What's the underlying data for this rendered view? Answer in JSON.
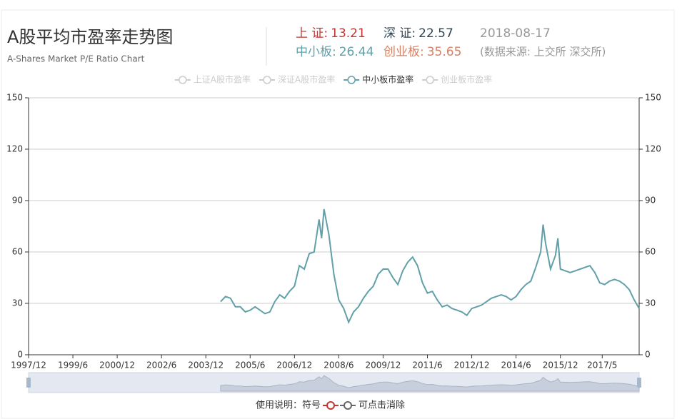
{
  "header": {
    "title": "A股平均市盈率走势图",
    "subtitle": "A-Shares Market P/E Ratio Chart",
    "stats": [
      {
        "label": "上 证:",
        "value": 13.21,
        "color": "#c23531"
      },
      {
        "label": "深 证:",
        "value": 22.57,
        "color": "#2f4554"
      },
      {
        "label": "中小板:",
        "value": 26.44,
        "color": "#61a0a8"
      },
      {
        "label": "创业板:",
        "value": 35.65,
        "color": "#d48265"
      }
    ],
    "date": "2018-08-17",
    "source": "(数据来源: 上交所 深交所)"
  },
  "chart_data": {
    "type": "line",
    "x": [
      "2004/6",
      "2004/8",
      "2004/10",
      "2004/12",
      "2005/2",
      "2005/4",
      "2005/6",
      "2005/8",
      "2005/10",
      "2005/12",
      "2006/2",
      "2006/4",
      "2006/6",
      "2006/8",
      "2006/10",
      "2006/12",
      "2007/2",
      "2007/4",
      "2007/6",
      "2007/8",
      "2007/10",
      "2007/11",
      "2007/12",
      "2008/2",
      "2008/4",
      "2008/6",
      "2008/8",
      "2008/10",
      "2008/12",
      "2009/2",
      "2009/4",
      "2009/6",
      "2009/8",
      "2009/10",
      "2009/12",
      "2010/2",
      "2010/4",
      "2010/6",
      "2010/8",
      "2010/10",
      "2010/12",
      "2011/2",
      "2011/4",
      "2011/6",
      "2011/8",
      "2011/10",
      "2011/12",
      "2012/2",
      "2012/4",
      "2012/6",
      "2012/8",
      "2012/10",
      "2012/12",
      "2013/2",
      "2013/4",
      "2013/6",
      "2013/8",
      "2013/10",
      "2013/12",
      "2014/2",
      "2014/4",
      "2014/6",
      "2014/8",
      "2014/10",
      "2014/12",
      "2015/2",
      "2015/4",
      "2015/5",
      "2015/6",
      "2015/8",
      "2015/10",
      "2015/11",
      "2015/12",
      "2016/2",
      "2016/4",
      "2016/6",
      "2016/8",
      "2016/10",
      "2016/12",
      "2017/2",
      "2017/4",
      "2017/6",
      "2017/8",
      "2017/10",
      "2017/12",
      "2018/2",
      "2018/4",
      "2018/6",
      "2018/8"
    ],
    "series": [
      {
        "name": "上证A股市盈率",
        "selected": false
      },
      {
        "name": "深证A股市盈率",
        "selected": false
      },
      {
        "name": "中小板市盈率",
        "selected": true,
        "color": "#61a0a8",
        "values": [
          31,
          34,
          33,
          28,
          28,
          25,
          26,
          28,
          26,
          24,
          25,
          31,
          35,
          33,
          37,
          40,
          52,
          50,
          59,
          60,
          79,
          68,
          85,
          70,
          47,
          32,
          27,
          19,
          25,
          28,
          33,
          37,
          40,
          47,
          50,
          50,
          45,
          41,
          49,
          54,
          57,
          52,
          42,
          36,
          37,
          32,
          28,
          29,
          27,
          26,
          25,
          23,
          27,
          28,
          29,
          31,
          33,
          34,
          35,
          34,
          32,
          34,
          38,
          41,
          43,
          51,
          60,
          76,
          65,
          50,
          58,
          68,
          50,
          49,
          48,
          49,
          50,
          51,
          52,
          48,
          42,
          41,
          43,
          44,
          43,
          41,
          38,
          32,
          27
        ]
      },
      {
        "name": "创业板市盈率",
        "selected": false
      }
    ],
    "xlim": [
      "1997/12",
      "2018/8"
    ],
    "xticks": [
      "1997/12",
      "1999/6",
      "2000/12",
      "2002/6",
      "2003/12",
      "2005/6",
      "2006/12",
      "2008/6",
      "2009/12",
      "2011/6",
      "2012/12",
      "2014/6",
      "2015/12",
      "2017/5"
    ],
    "ylim": [
      0,
      150
    ],
    "yticks": [
      0,
      30,
      60,
      90,
      120,
      150
    ],
    "y2lim": [
      0,
      150
    ],
    "y2ticks": [
      0,
      30,
      60,
      90,
      120,
      150
    ],
    "grid": true
  },
  "footer": {
    "prefix": "使用说明：符号",
    "suffix": "可点击消除"
  }
}
